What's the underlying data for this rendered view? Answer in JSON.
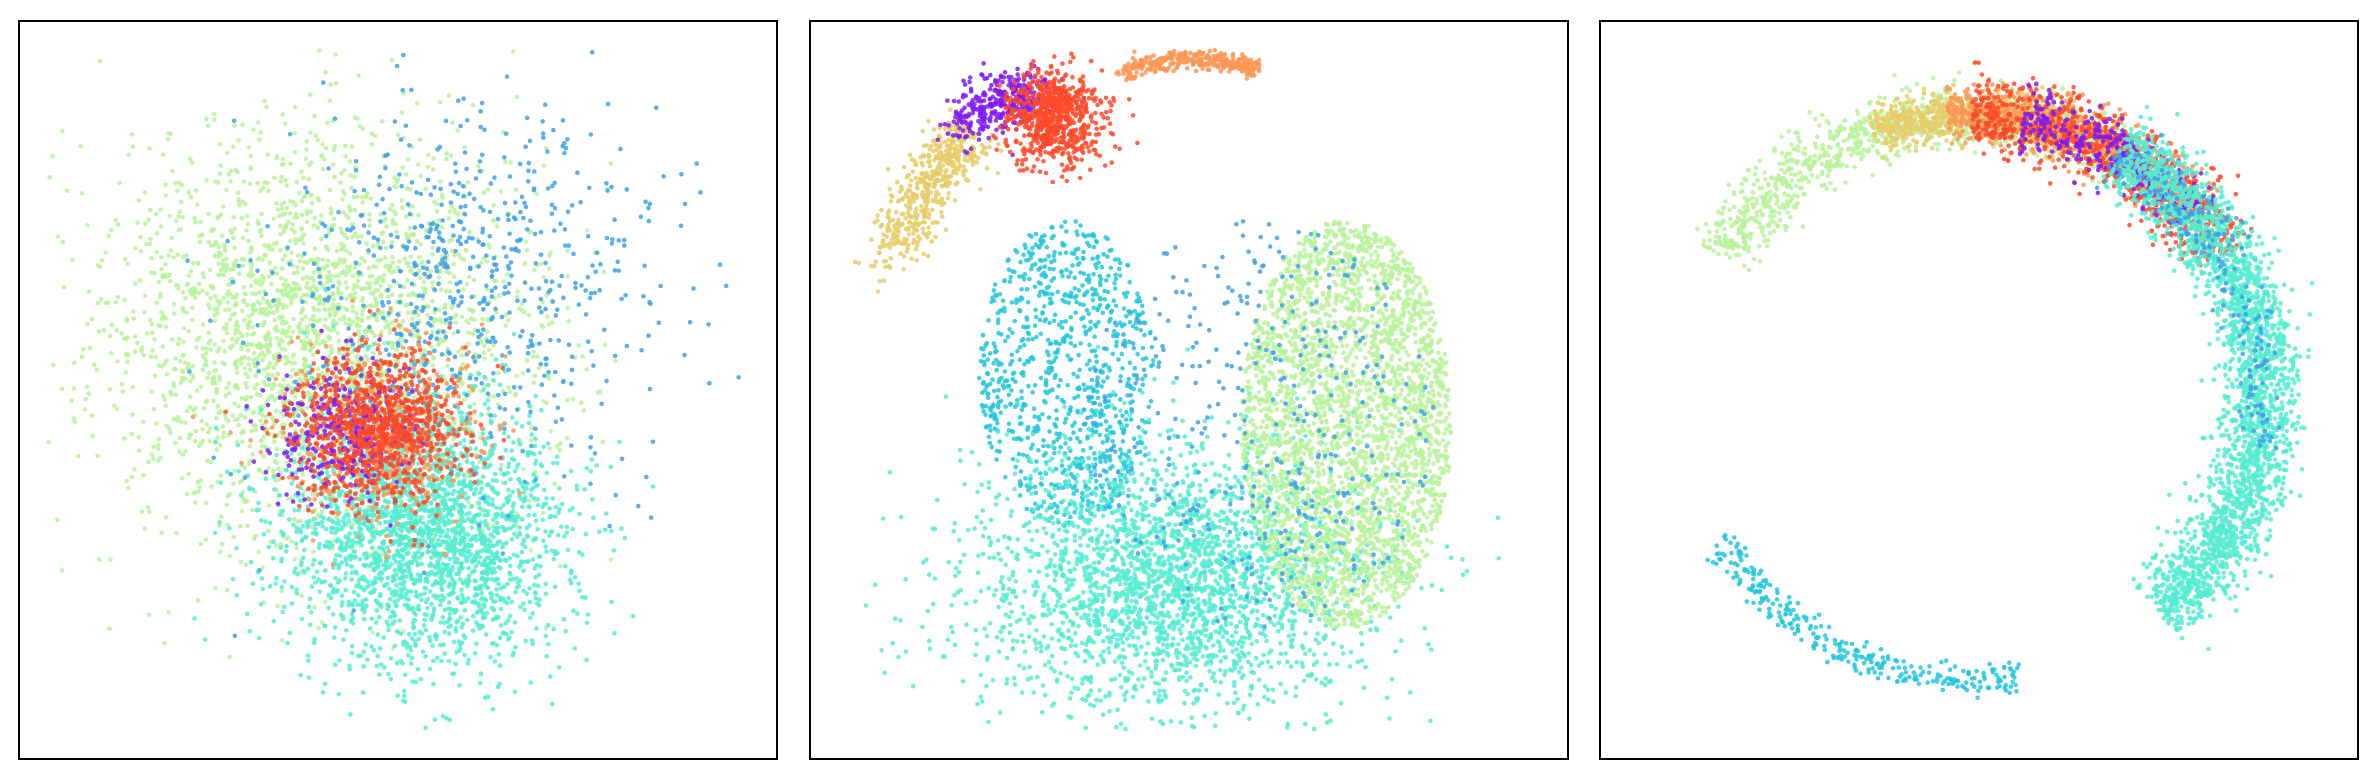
{
  "figure": {
    "description_title": "",
    "panel_count": 3
  },
  "colors": {
    "purple": "#7f1cf5",
    "blue": "#3ea1e8",
    "cyan": "#22c7dc",
    "aqua": "#55ecd0",
    "lightgreen": "#b9f29b",
    "sand": "#e6cc6a",
    "orange": "#fc9656",
    "red": "#ff4a2a"
  },
  "chart_data": [
    {
      "type": "scatter",
      "title": "",
      "xlabel": "",
      "ylabel": "",
      "axes_visible": false,
      "grid": false,
      "xlim": [
        -1,
        1
      ],
      "ylim": [
        -1,
        1
      ],
      "series": [
        {
          "name": "lightgreen",
          "color": "#b9f29b",
          "shape": "blob",
          "n": 2600,
          "center": [
            -0.22,
            0.15
          ],
          "spread": [
            0.3,
            0.3
          ]
        },
        {
          "name": "aqua",
          "color": "#55ecd0",
          "shape": "blob",
          "n": 2400,
          "center": [
            0.08,
            -0.42
          ],
          "spread": [
            0.2,
            0.2
          ]
        },
        {
          "name": "blue",
          "color": "#3ea1e8",
          "shape": "blob",
          "n": 650,
          "center": [
            0.2,
            0.3
          ],
          "spread": [
            0.28,
            0.28
          ]
        },
        {
          "name": "orange",
          "color": "#fc9656",
          "shape": "blob",
          "n": 500,
          "center": [
            -0.05,
            -0.12
          ],
          "spread": [
            0.14,
            0.14
          ]
        },
        {
          "name": "purple",
          "color": "#7f1cf5",
          "shape": "blob",
          "n": 350,
          "center": [
            -0.15,
            -0.12
          ],
          "spread": [
            0.1,
            0.1
          ]
        },
        {
          "name": "red",
          "color": "#ff4a2a",
          "shape": "blob",
          "n": 900,
          "center": [
            -0.05,
            -0.12
          ],
          "spread": [
            0.11,
            0.11
          ]
        }
      ]
    },
    {
      "type": "scatter",
      "title": "",
      "xlabel": "",
      "ylabel": "",
      "axes_visible": false,
      "grid": false,
      "xlim": [
        -1,
        1
      ],
      "ylim": [
        -1,
        1
      ],
      "series": [
        {
          "name": "cyan",
          "color": "#22c7dc",
          "shape": "disk",
          "n": 900,
          "center": [
            -0.35,
            0.05
          ],
          "spread": [
            0.25,
            0.45
          ]
        },
        {
          "name": "aqua",
          "color": "#55ecd0",
          "shape": "blob",
          "n": 2600,
          "center": [
            -0.05,
            -0.55
          ],
          "spread": [
            0.28,
            0.2
          ]
        },
        {
          "name": "lightgreen",
          "color": "#b9f29b",
          "shape": "disk",
          "n": 3000,
          "center": [
            0.45,
            -0.1
          ],
          "spread": [
            0.3,
            0.6
          ]
        },
        {
          "name": "blue",
          "color": "#3ea1e8",
          "shape": "disk",
          "n": 400,
          "center": [
            0.2,
            -0.1
          ],
          "spread": [
            0.5,
            0.6
          ]
        },
        {
          "name": "sand",
          "color": "#e6cc6a",
          "shape": "arc",
          "n": 500,
          "from": [
            -0.85,
            0.4
          ],
          "to": [
            -0.62,
            0.75
          ],
          "width": 0.04
        },
        {
          "name": "purple",
          "color": "#7f1cf5",
          "shape": "arc",
          "n": 350,
          "from": [
            -0.65,
            0.77
          ],
          "to": [
            -0.42,
            0.86
          ],
          "width": 0.04
        },
        {
          "name": "red",
          "color": "#ff4a2a",
          "shape": "blob",
          "n": 700,
          "center": [
            -0.38,
            0.8
          ],
          "spread": [
            0.07,
            0.07
          ]
        },
        {
          "name": "orange",
          "color": "#fc9656",
          "shape": "arc",
          "n": 350,
          "from": [
            -0.2,
            0.93
          ],
          "to": [
            0.2,
            0.94
          ],
          "width": 0.015
        }
      ]
    },
    {
      "type": "scatter",
      "title": "",
      "xlabel": "",
      "ylabel": "",
      "axes_visible": false,
      "grid": false,
      "xlim": [
        -1,
        1
      ],
      "ylim": [
        -1,
        1
      ],
      "series": [
        {
          "name": "lightgreen",
          "color": "#b9f29b",
          "shape": "ring",
          "n": 1100,
          "center": [
            -0.02,
            -0.02
          ],
          "radius": [
            0.8,
            0.86
          ],
          "angle_deg": [
            60,
            150
          ],
          "width": 0.04
        },
        {
          "name": "sand",
          "color": "#e6cc6a",
          "shape": "ring",
          "n": 700,
          "center": [
            -0.02,
            -0.02
          ],
          "radius": [
            0.8,
            0.86
          ],
          "angle_deg": [
            70,
            110
          ],
          "width": 0.03
        },
        {
          "name": "orange",
          "color": "#fc9656",
          "shape": "ring",
          "n": 900,
          "center": [
            -0.02,
            -0.02
          ],
          "radius": [
            0.8,
            0.86
          ],
          "angle_deg": [
            40,
            95
          ],
          "width": 0.04
        },
        {
          "name": "red",
          "color": "#ff4a2a",
          "shape": "ring",
          "n": 900,
          "center": [
            -0.02,
            -0.02
          ],
          "radius": [
            0.8,
            0.86
          ],
          "angle_deg": [
            30,
            90
          ],
          "width": 0.05
        },
        {
          "name": "purple",
          "color": "#7f1cf5",
          "shape": "ring",
          "n": 350,
          "center": [
            -0.02,
            -0.02
          ],
          "radius": [
            0.8,
            0.86
          ],
          "angle_deg": [
            40,
            80
          ],
          "width": 0.04
        },
        {
          "name": "aqua",
          "color": "#55ecd0",
          "shape": "ring",
          "n": 2600,
          "center": [
            -0.02,
            -0.02
          ],
          "radius": [
            0.8,
            0.86
          ],
          "angle_deg": [
            -50,
            60
          ],
          "width": 0.05
        },
        {
          "name": "cyan",
          "color": "#22c7dc",
          "shape": "ring",
          "n": 300,
          "center": [
            -0.02,
            -0.02
          ],
          "radius": [
            0.8,
            0.86
          ],
          "angle_deg": [
            -150,
            -80
          ],
          "width": 0.015
        },
        {
          "name": "blue",
          "color": "#3ea1e8",
          "shape": "ring",
          "n": 200,
          "center": [
            -0.02,
            -0.02
          ],
          "radius": [
            0.8,
            0.86
          ],
          "angle_deg": [
            -10,
            60
          ],
          "width": 0.04
        }
      ]
    }
  ]
}
